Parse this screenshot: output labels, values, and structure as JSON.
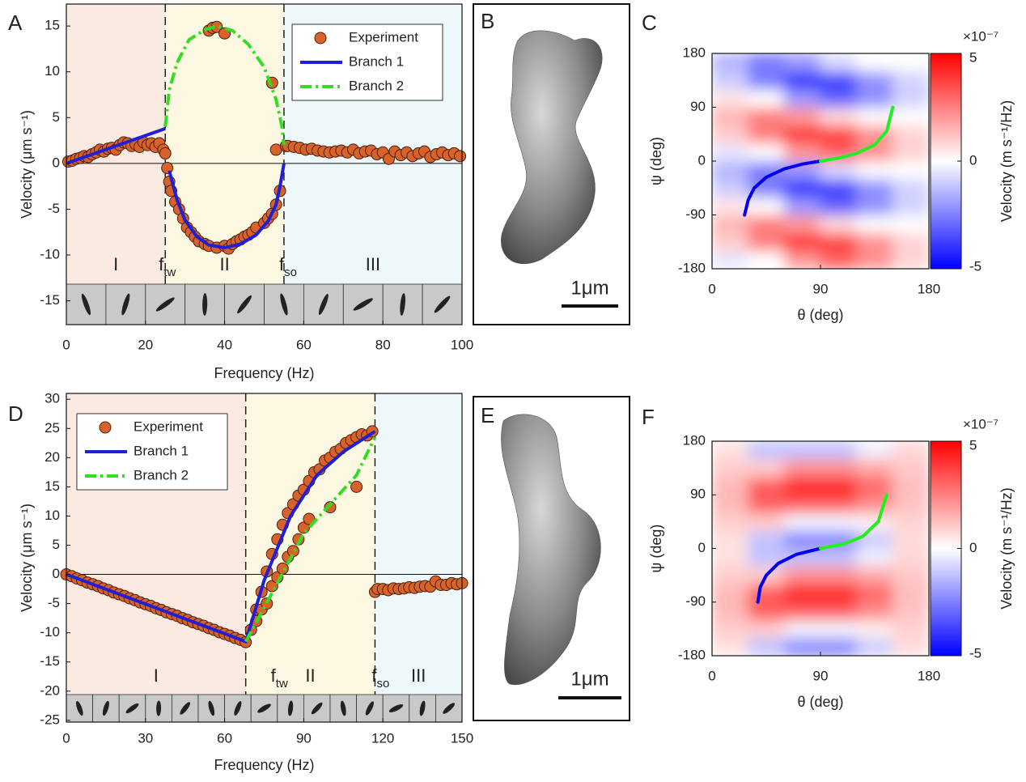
{
  "chart_data": [
    {
      "type": "scatter",
      "panel": "A",
      "xlabel": "Frequency (Hz)",
      "ylabel": "Velocity (μm s⁻¹)",
      "xlim": [
        0,
        100
      ],
      "ylim": [
        -17.6,
        17.4
      ],
      "xticks": [
        0,
        20,
        40,
        60,
        80,
        100
      ],
      "yticks": [
        -15,
        -10,
        -5,
        0,
        5,
        10,
        15
      ],
      "zero_line": true,
      "legend": "upper right",
      "regions": [
        {
          "label": "I",
          "from": 0,
          "to": 25,
          "color": "#fbeae2"
        },
        {
          "label": "II",
          "from": 25,
          "to": 55,
          "color": "#fdf8e2",
          "marker": {
            "text": "f",
            "sub": "tw"
          }
        },
        {
          "label": "III",
          "from": 55,
          "to": 100,
          "color": "#eef7fa",
          "marker": {
            "text": "f",
            "sub": "so"
          }
        }
      ],
      "series": [
        {
          "name": "Experiment",
          "mode": "markers",
          "color": "#d9622b",
          "x": [
            0.5,
            1.5,
            2.5,
            3.5,
            4.5,
            5.5,
            6.5,
            7.5,
            8.5,
            9.5,
            10.5,
            11.5,
            12.5,
            13.5,
            14.5,
            15.5,
            16.5,
            17.5,
            18.5,
            19.5,
            20.5,
            21.5,
            22.5,
            23.5,
            24.5,
            25,
            25.5,
            26,
            26.5,
            27.5,
            28.5,
            29.5,
            30.5,
            31.5,
            32.5,
            33.5,
            35,
            36,
            38,
            40,
            41,
            42,
            43,
            44,
            45,
            46,
            47,
            48,
            50,
            51,
            52,
            53,
            54,
            36,
            37,
            38,
            40,
            52,
            53,
            55.5,
            56,
            57.5,
            59,
            60.5,
            62,
            63.5,
            65,
            66.5,
            68,
            69.5,
            71,
            72.5,
            74,
            75.5,
            77,
            78.5,
            80,
            81.5,
            83,
            84.5,
            86,
            87.5,
            89,
            90.5,
            92,
            93.5,
            95,
            96.5,
            98,
            99.5
          ],
          "values": [
            0.2,
            0.3,
            0.5,
            0.6,
            0.8,
            0.7,
            1.0,
            1.2,
            1.5,
            1.3,
            1.6,
            1.7,
            1.5,
            2.0,
            2.3,
            2.2,
            1.9,
            2.1,
            1.8,
            2.3,
            2.0,
            2.2,
            1.8,
            2.2,
            1.5,
            1.1,
            -0.5,
            -2.0,
            -3.0,
            -4.2,
            -5.0,
            -6.0,
            -7.0,
            -7.5,
            -8.0,
            -8.5,
            -8.8,
            -9.0,
            -9.2,
            -9.0,
            -9.3,
            -8.8,
            -8.5,
            -8.3,
            -8.0,
            -7.8,
            -7.5,
            -7.0,
            -6.5,
            -6.0,
            -5.5,
            -4.5,
            -3.0,
            14.5,
            14.8,
            14.9,
            14.2,
            8.8,
            1.5,
            1.9,
            1.9,
            1.8,
            1.7,
            1.5,
            1.6,
            1.4,
            1.3,
            1.2,
            1.3,
            1.4,
            1.2,
            1.5,
            1.1,
            1.3,
            1.4,
            1.0,
            1.2,
            0.5,
            1.3,
            0.9,
            1.2,
            0.8,
            1.1,
            1.3,
            0.7,
            1.0,
            1.2,
            0.9,
            1.1,
            0.8
          ]
        },
        {
          "name": "Branch 1",
          "mode": "lines",
          "dash": "solid",
          "color": "#1f1fd6",
          "x": [
            0,
            25,
            25,
            26,
            28,
            30,
            33,
            36,
            40,
            44,
            48,
            51,
            53,
            54,
            55
          ],
          "values": [
            0,
            3.8,
            null,
            -0.8,
            -4,
            -6.2,
            -8.0,
            -8.9,
            -9.2,
            -8.8,
            -7.8,
            -6.3,
            -4.5,
            -2.5,
            0
          ]
        },
        {
          "name": "Branch 2",
          "mode": "lines",
          "dash": "dashdot",
          "color": "#33dd22",
          "x": [
            25,
            26,
            28,
            31,
            35,
            38,
            42,
            46,
            50,
            53,
            54.5,
            55
          ],
          "values": [
            4,
            8,
            11,
            13.5,
            14.6,
            15,
            14.5,
            13,
            10.5,
            7,
            4,
            2
          ]
        }
      ]
    },
    {
      "type": "heatmap",
      "panel": "C",
      "xlabel": "θ (deg)",
      "ylabel": "ψ (deg)",
      "xlim": [
        0,
        180
      ],
      "ylim": [
        -180,
        180
      ],
      "xticks": [
        0,
        90,
        180
      ],
      "yticks": [
        -180,
        -90,
        0,
        90,
        180
      ],
      "x": [
        15,
        45,
        75,
        105,
        135,
        165
      ],
      "y": [
        -165,
        -135,
        -105,
        -75,
        -45,
        -15,
        15,
        45,
        75,
        105,
        135,
        165
      ],
      "z": [
        [
          -0.5,
          0,
          2.0,
          3.1,
          2.2,
          0.9
        ],
        [
          1.0,
          2.6,
          4.0,
          3.8,
          2.2,
          0.9
        ],
        [
          1.5,
          2.6,
          2.0,
          0.7,
          0,
          0
        ],
        [
          0.5,
          0,
          -2.0,
          -3.1,
          -2.2,
          -0.9
        ],
        [
          -1.0,
          -2.6,
          -4.0,
          -3.8,
          -2.2,
          -0.9
        ],
        [
          -1.5,
          -2.6,
          -2.0,
          -0.7,
          0,
          0
        ],
        [
          -0.5,
          0,
          2.0,
          3.1,
          2.2,
          0.9
        ],
        [
          1.0,
          2.6,
          4.0,
          3.8,
          2.2,
          0.9
        ],
        [
          1.5,
          2.6,
          2.0,
          0.7,
          0,
          0
        ],
        [
          0.5,
          0,
          -2.0,
          -3.1,
          -2.2,
          -0.9
        ],
        [
          -1.0,
          -2.6,
          -4.0,
          -3.8,
          -2.2,
          -0.9
        ],
        [
          -1.5,
          -2.6,
          -2.0,
          -0.7,
          0,
          0
        ]
      ],
      "colorbar": {
        "label": "Velocity (m s⁻¹/Hz)",
        "multiplier": "×10⁻⁷",
        "lim": [
          -5,
          5
        ],
        "ticks": [
          -5,
          0,
          5
        ]
      },
      "series": [
        {
          "color": "#0000ee",
          "x": [
            27,
            30,
            35,
            45,
            60,
            75,
            90
          ],
          "values": [
            -90,
            -65,
            -45,
            -27,
            -13,
            -5,
            0
          ]
        },
        {
          "color": "#22ee22",
          "x": [
            90,
            105,
            120,
            135,
            145,
            150
          ],
          "values": [
            0,
            5,
            13,
            27,
            50,
            90
          ]
        }
      ]
    },
    {
      "type": "scatter",
      "panel": "D",
      "xlabel": "Frequency (Hz)",
      "ylabel": "Velocity (μm s⁻¹)",
      "xlim": [
        0,
        150
      ],
      "ylim": [
        -25.3,
        31
      ],
      "xticks": [
        0,
        30,
        60,
        90,
        120,
        150
      ],
      "yticks": [
        -25,
        -20,
        -15,
        -10,
        -5,
        0,
        5,
        10,
        15,
        20,
        25,
        30
      ],
      "zero_line": true,
      "legend": "upper left",
      "regions": [
        {
          "label": "I",
          "from": 0,
          "to": 68,
          "color": "#fbeae2"
        },
        {
          "label": "II",
          "from": 68,
          "to": 117,
          "color": "#fdf8e2",
          "marker": {
            "text": "f",
            "sub": "tw"
          }
        },
        {
          "label": "III",
          "from": 117,
          "to": 150,
          "color": "#eef7fa",
          "marker": {
            "text": "f",
            "sub": "so"
          }
        }
      ],
      "series": [
        {
          "name": "Experiment",
          "mode": "markers",
          "color": "#d9622b",
          "x": [
            0,
            2,
            4,
            6,
            8,
            10,
            12,
            14,
            16,
            18,
            20,
            22,
            24,
            26,
            28,
            30,
            32,
            34,
            36,
            38,
            40,
            42,
            44,
            46,
            48,
            50,
            52,
            54,
            56,
            58,
            60,
            62,
            64,
            66,
            68,
            70,
            72,
            74,
            76,
            78,
            80,
            82,
            84,
            86,
            88,
            90,
            92,
            94,
            96,
            98,
            100,
            102,
            104,
            106,
            108,
            110,
            112,
            114,
            116,
            72,
            74,
            76,
            78,
            80,
            82,
            84,
            86,
            88,
            90,
            92,
            100,
            110,
            117,
            118,
            120,
            122,
            124,
            126,
            128,
            130,
            132,
            134,
            136,
            138,
            140,
            142,
            144,
            146,
            148,
            150
          ],
          "values": [
            0,
            -0.3,
            -0.7,
            -1.0,
            -1.4,
            -1.7,
            -2.0,
            -2.4,
            -2.7,
            -3.1,
            -3.4,
            -3.7,
            -4.1,
            -4.4,
            -4.8,
            -5.1,
            -5.4,
            -5.8,
            -6.1,
            -6.5,
            -6.8,
            -7.1,
            -7.5,
            -7.8,
            -8.2,
            -8.5,
            -8.8,
            -9.2,
            -9.5,
            -9.9,
            -10.2,
            -10.5,
            -10.9,
            -11.2,
            -11.6,
            -9.5,
            -6,
            -3,
            0.5,
            3.5,
            6,
            8.5,
            10.5,
            12,
            13.5,
            14.5,
            16,
            17.5,
            18,
            19.5,
            20,
            21,
            21.5,
            22.5,
            23,
            23.5,
            24,
            23.8,
            24.5,
            -8,
            -6,
            -5,
            -2,
            -0.5,
            1,
            3,
            4,
            6,
            8,
            9.5,
            11.5,
            15,
            -3,
            -2.5,
            -2.5,
            -2.7,
            -2.4,
            -2.5,
            -2.4,
            -2.2,
            -2.3,
            -2.1,
            -2.0,
            -2.1,
            -1.2,
            -1.8,
            -1.8,
            -1.5,
            -1.7,
            -1.5
          ]
        },
        {
          "name": "Branch 1",
          "mode": "lines",
          "dash": "solid",
          "color": "#1f1fd6",
          "x": [
            0,
            68,
            75,
            85,
            95,
            105,
            117
          ],
          "values": [
            0,
            -11.5,
            -1,
            10,
            17,
            21,
            24.5
          ]
        },
        {
          "name": "Branch 2",
          "mode": "lines",
          "dash": "dashdot",
          "color": "#33dd22",
          "x": [
            68,
            80,
            90,
            100,
            110,
            117
          ],
          "values": [
            -11.5,
            -1.5,
            7,
            12,
            17,
            23.5
          ]
        }
      ]
    },
    {
      "type": "heatmap",
      "panel": "F",
      "xlabel": "θ (deg)",
      "ylabel": "ψ (deg)",
      "xlim": [
        0,
        180
      ],
      "ylim": [
        -180,
        180
      ],
      "xticks": [
        0,
        90,
        180
      ],
      "yticks": [
        -180,
        -90,
        0,
        90,
        180
      ],
      "x": [
        15,
        45,
        75,
        105,
        135,
        165
      ],
      "y": [
        -165,
        -135,
        -105,
        -75,
        -45,
        -15,
        15,
        45,
        75,
        105,
        135,
        165
      ],
      "z": [
        [
          0.6,
          -1.2,
          -2.4,
          -2.4,
          -1.0,
          0.7
        ],
        [
          1.0,
          1.0,
          -0.2,
          -0.2,
          0.3,
          0.9
        ],
        [
          1.4,
          3.2,
          3.2,
          3.2,
          2.3,
          1.2
        ],
        [
          1.4,
          3.2,
          4.4,
          4.4,
          3.0,
          1.3
        ],
        [
          1.0,
          1.0,
          2.2,
          2.2,
          1.7,
          1.1
        ],
        [
          0.6,
          -1.2,
          -1.2,
          -1.2,
          -0.3,
          0.8
        ],
        [
          0.6,
          -1.2,
          -2.4,
          -2.4,
          -1.0,
          0.7
        ],
        [
          1.0,
          1.0,
          -0.2,
          -0.2,
          0.3,
          0.9
        ],
        [
          1.4,
          3.2,
          3.2,
          3.2,
          2.3,
          1.2
        ],
        [
          1.4,
          3.2,
          4.4,
          4.4,
          3.0,
          1.3
        ],
        [
          1.0,
          1.0,
          2.2,
          2.2,
          1.7,
          1.1
        ],
        [
          0.6,
          -1.2,
          -1.2,
          -1.2,
          -0.3,
          0.8
        ]
      ],
      "colorbar": {
        "label": "Velocity (m s⁻¹/Hz)",
        "multiplier": "×10⁻⁷",
        "lim": [
          -5,
          5
        ],
        "ticks": [
          -5,
          0,
          5
        ]
      },
      "series": [
        {
          "color": "#0000ee",
          "x": [
            38,
            40,
            45,
            55,
            70,
            90
          ],
          "values": [
            -90,
            -65,
            -45,
            -25,
            -10,
            0
          ]
        },
        {
          "color": "#22ee22",
          "x": [
            90,
            110,
            125,
            138,
            145
          ],
          "values": [
            0,
            8,
            20,
            45,
            90
          ]
        }
      ]
    }
  ],
  "images": [
    {
      "panel": "B",
      "scale_bar": "1μm"
    },
    {
      "panel": "E",
      "scale_bar": "1μm"
    }
  ]
}
